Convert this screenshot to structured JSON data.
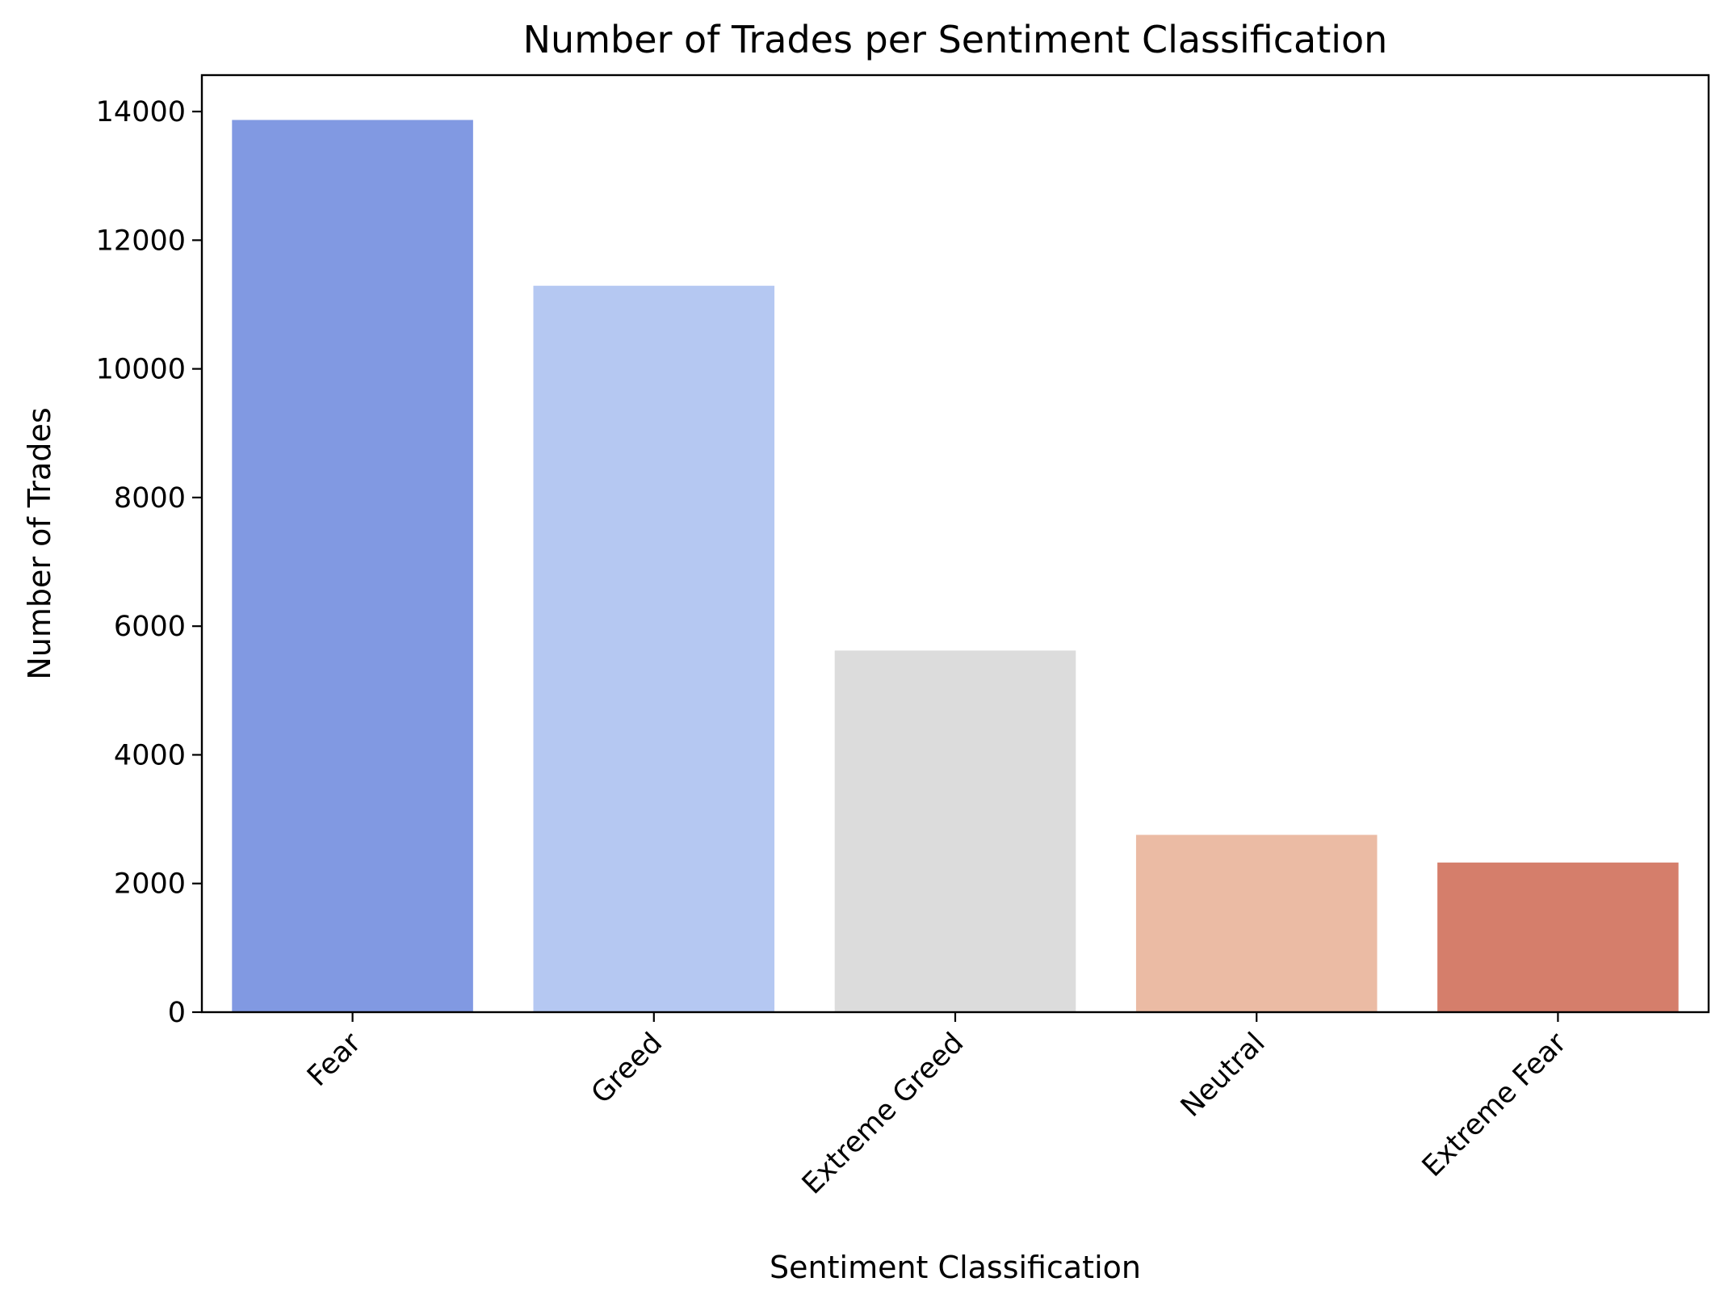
{
  "chart_data": {
    "type": "bar",
    "title": "Number of Trades per Sentiment Classification",
    "xlabel": "Sentiment Classification",
    "ylabel": "Number of Trades",
    "categories": [
      "Fear",
      "Greed",
      "Extreme Greed",
      "Neutral",
      "Extreme Fear"
    ],
    "values": [
      13869,
      11292,
      5621,
      2756,
      2326
    ],
    "colors": [
      "#8199e2",
      "#b5c8f2",
      "#dcdcdc",
      "#ebbba4",
      "#d57e6b"
    ],
    "ylim": [
      0,
      14566
    ],
    "yticks": [
      0,
      2000,
      4000,
      6000,
      8000,
      10000,
      12000,
      14000
    ],
    "grid": false,
    "legend": "none"
  }
}
